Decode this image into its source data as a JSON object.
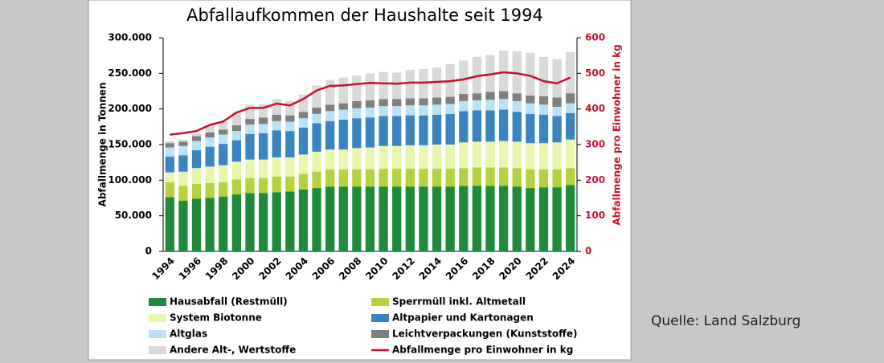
{
  "chart_data": {
    "type": "bar",
    "stacked": true,
    "title": "Abfallaufkommen der Haushalte seit 1994",
    "y_label": "Abfallmenge in Tonnen",
    "y2_label": "Abfallmenge pro Einwohner in kg",
    "categories": [
      "1994",
      null,
      "1996",
      null,
      "1998",
      null,
      "2000",
      null,
      "2002",
      null,
      "2004",
      null,
      "2006",
      null,
      "2008",
      null,
      "2010",
      null,
      "2012",
      null,
      "2014",
      null,
      "2016",
      null,
      "2018",
      null,
      "2020",
      null,
      "2022",
      null,
      "2024"
    ],
    "ylim": [
      0,
      300000
    ],
    "yticks": [
      0,
      {
        "value": 50000,
        "label": "50.000"
      },
      {
        "value": 100000,
        "label": "100.000"
      },
      {
        "value": 150000,
        "label": "150.000"
      },
      {
        "value": 200000,
        "label": "200.000"
      },
      {
        "value": 250000,
        "label": "250.000"
      },
      {
        "value": 300000,
        "label": "300.000"
      }
    ],
    "y2lim": [
      0,
      600
    ],
    "y2ticks": [
      0,
      100,
      200,
      300,
      400,
      500,
      600
    ],
    "y2_color": "#c8102e",
    "grid": false,
    "series": [
      {
        "name": "Hausabfall (Restmüll)",
        "color": "#1f8a3b",
        "values": [
          76000,
          71000,
          74000,
          75000,
          77000,
          80000,
          82000,
          82000,
          83000,
          84000,
          87000,
          89000,
          91000,
          91000,
          91000,
          91000,
          91000,
          91000,
          91000,
          91000,
          91000,
          91000,
          92000,
          92000,
          92000,
          92000,
          91000,
          89000,
          90000,
          90000,
          93000
        ]
      },
      {
        "name": "Sperrmüll inkl. Altmetall",
        "color": "#b4d23e",
        "values": [
          21000,
          21000,
          21000,
          21000,
          20000,
          21000,
          21000,
          21000,
          22000,
          21000,
          22000,
          23000,
          24000,
          24000,
          24000,
          24000,
          25000,
          25000,
          25000,
          25000,
          25000,
          25000,
          25000,
          26000,
          26000,
          26000,
          26000,
          26000,
          25000,
          25000,
          24000
        ]
      },
      {
        "name": "System Biotonne",
        "color": "#e8f6ab",
        "values": [
          14000,
          20000,
          22000,
          23000,
          24000,
          25000,
          26000,
          26000,
          27000,
          27000,
          27000,
          28000,
          28000,
          28000,
          30000,
          31000,
          32000,
          32000,
          33000,
          33000,
          34000,
          34000,
          36000,
          36000,
          36000,
          37000,
          37000,
          37000,
          37000,
          38000,
          40000
        ]
      },
      {
        "name": "Altpapier und Kartonagen",
        "color": "#3a84c0",
        "values": [
          22000,
          23000,
          25000,
          28000,
          30000,
          30000,
          36000,
          37000,
          38000,
          37000,
          38000,
          40000,
          40000,
          42000,
          42000,
          42000,
          42000,
          42000,
          42000,
          42000,
          42000,
          43000,
          44000,
          44000,
          44000,
          44000,
          42000,
          41000,
          40000,
          37000,
          37000
        ]
      },
      {
        "name": "Altglas",
        "color": "#b9e2f7",
        "values": [
          13000,
          13000,
          13000,
          13000,
          13000,
          13000,
          13000,
          13000,
          13000,
          13000,
          13000,
          13000,
          14000,
          14000,
          14000,
          14000,
          14000,
          14000,
          14000,
          14000,
          14000,
          14000,
          14000,
          14000,
          15000,
          15000,
          15000,
          15000,
          14000,
          13000,
          14000
        ]
      },
      {
        "name": "Leichtverpackungen (Kunststoffe)",
        "color": "#7f7f7f",
        "values": [
          6000,
          6000,
          7000,
          7000,
          7000,
          8000,
          8000,
          9000,
          9000,
          9000,
          9000,
          9000,
          9000,
          9000,
          10000,
          10000,
          10000,
          10000,
          10000,
          10000,
          10000,
          10000,
          10000,
          10000,
          11000,
          11000,
          11000,
          11000,
          12000,
          13000,
          14000
        ]
      },
      {
        "name": "Andere Alt-, Wertstoffe",
        "color": "#d9d9d9",
        "values": [
          3000,
          3000,
          3000,
          10000,
          11000,
          18000,
          20000,
          19000,
          22000,
          20000,
          24000,
          31000,
          35000,
          36000,
          36000,
          38000,
          38000,
          37000,
          40000,
          41000,
          42000,
          46000,
          47000,
          51000,
          52000,
          57000,
          59000,
          60000,
          55000,
          54000,
          58000
        ]
      },
      {
        "name": "Abfallmenge pro Einwohner in kg",
        "type": "line",
        "axis": "y2",
        "color": "#c8102e",
        "values": [
          328,
          332,
          338,
          355,
          365,
          390,
          403,
          403,
          415,
          410,
          428,
          452,
          465,
          466,
          470,
          473,
          472,
          471,
          474,
          474,
          476,
          478,
          483,
          492,
          497,
          503,
          500,
          493,
          478,
          472,
          488
        ]
      }
    ]
  },
  "source": "Quelle: Land Salzburg"
}
